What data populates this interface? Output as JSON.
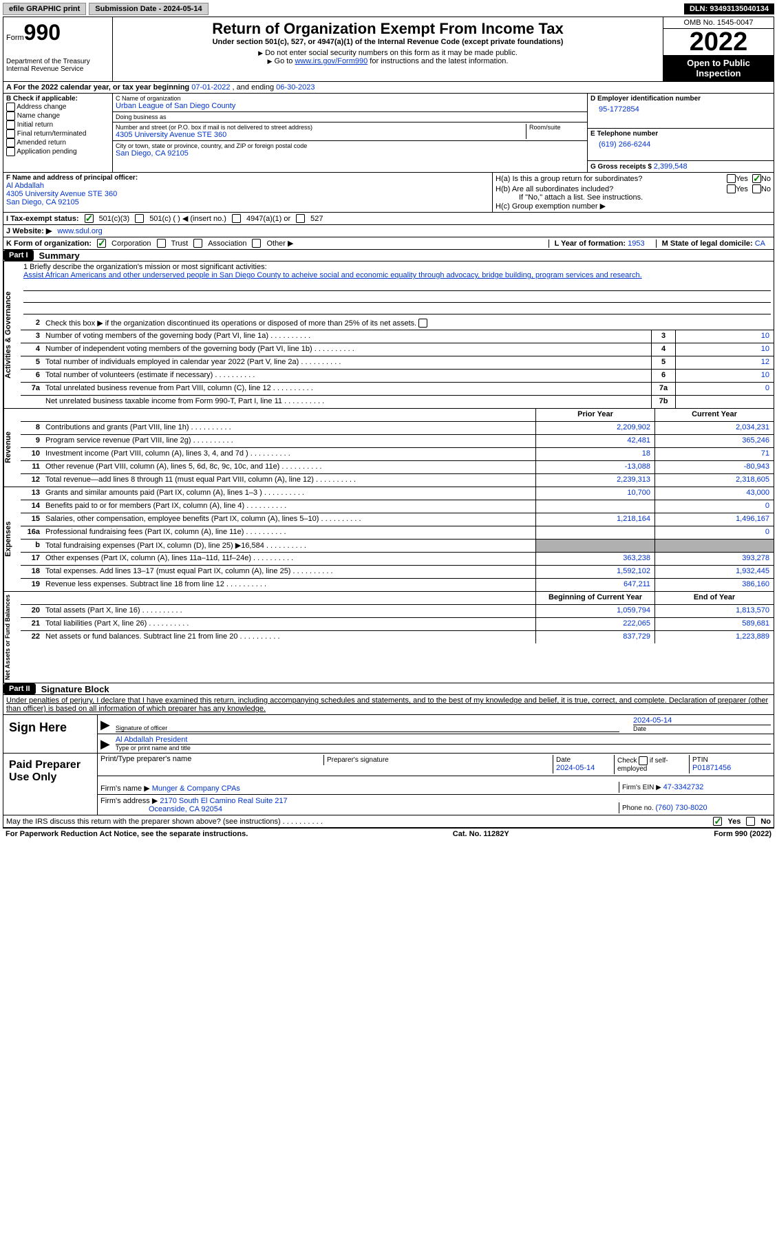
{
  "topbar": {
    "efile": "efile GRAPHIC print",
    "submission_label": "Submission Date - 2024-05-14",
    "dln": "DLN: 93493135040134"
  },
  "header": {
    "form_word": "Form",
    "form_num": "990",
    "dept": "Department of the Treasury\nInternal Revenue Service",
    "title": "Return of Organization Exempt From Income Tax",
    "subtitle": "Under section 501(c), 527, or 4947(a)(1) of the Internal Revenue Code (except private foundations)",
    "note1": "Do not enter social security numbers on this form as it may be made public.",
    "note2_a": "Go to ",
    "note2_link": "www.irs.gov/Form990",
    "note2_b": " for instructions and the latest information.",
    "omb": "OMB No. 1545-0047",
    "year": "2022",
    "inspection": "Open to Public Inspection"
  },
  "rowA": {
    "text_a": "A For the 2022 calendar year, or tax year beginning ",
    "begin": "07-01-2022",
    "mid": " , and ending ",
    "end": "06-30-2023"
  },
  "colB": {
    "hdr": "B Check if applicable:",
    "items": [
      "Address change",
      "Name change",
      "Initial return",
      "Final return/terminated",
      "Amended return",
      "Application pending"
    ]
  },
  "colC": {
    "name_lbl": "C Name of organization",
    "name": "Urban League of San Diego County",
    "dba_lbl": "Doing business as",
    "dba": "",
    "street_lbl": "Number and street (or P.O. box if mail is not delivered to street address)",
    "room_lbl": "Room/suite",
    "street": "4305 University Avenue STE 360",
    "city_lbl": "City or town, state or province, country, and ZIP or foreign postal code",
    "city": "San Diego, CA  92105"
  },
  "colD": {
    "ein_lbl": "D Employer identification number",
    "ein": "95-1772854",
    "phone_lbl": "E Telephone number",
    "phone": "(619) 266-6244",
    "gross_lbl": "G Gross receipts $ ",
    "gross": "2,399,548"
  },
  "colF": {
    "lbl": "F Name and address of principal officer:",
    "name": "Al Abdallah",
    "addr1": "4305 University Avenue STE 360",
    "addr2": "San Diego, CA  92105"
  },
  "colH": {
    "a": "H(a)  Is this a group return for subordinates?",
    "b": "H(b)  Are all subordinates included?",
    "b_note": "If \"No,\" attach a list. See instructions.",
    "c": "H(c)  Group exemption number ▶",
    "yes": "Yes",
    "no": "No"
  },
  "rowI": {
    "lbl": "I   Tax-exempt status:",
    "o1": "501(c)(3)",
    "o2": "501(c) (  ) ◀ (insert no.)",
    "o3": "4947(a)(1) or",
    "o4": "527"
  },
  "rowJ": {
    "lbl": "J   Website: ▶ ",
    "val": "www.sdul.org"
  },
  "rowK": {
    "lbl": "K Form of organization:",
    "o1": "Corporation",
    "o2": "Trust",
    "o3": "Association",
    "o4": "Other ▶",
    "l_lbl": "L Year of formation: ",
    "l_val": "1953",
    "m_lbl": "M State of legal domicile: ",
    "m_val": "CA"
  },
  "part1": {
    "hdr": "Part I",
    "title": "Summary"
  },
  "mission": {
    "q": "1   Briefly describe the organization's mission or most significant activities:",
    "text": "Assist African Americans and other underserved people in San Diego County to acheive social and economic equality through advocacy, bridge building, program services and research."
  },
  "gov": {
    "side": "Activities & Governance",
    "r2": "Check this box ▶        if the organization discontinued its operations or disposed of more than 25% of its net assets.",
    "rows": [
      {
        "n": "3",
        "desc": "Number of voting members of the governing body (Part VI, line 1a)",
        "box": "3",
        "val": "10"
      },
      {
        "n": "4",
        "desc": "Number of independent voting members of the governing body (Part VI, line 1b)",
        "box": "4",
        "val": "10"
      },
      {
        "n": "5",
        "desc": "Total number of individuals employed in calendar year 2022 (Part V, line 2a)",
        "box": "5",
        "val": "12"
      },
      {
        "n": "6",
        "desc": "Total number of volunteers (estimate if necessary)",
        "box": "6",
        "val": "10"
      },
      {
        "n": "7a",
        "desc": "Total unrelated business revenue from Part VIII, column (C), line 12",
        "box": "7a",
        "val": "0"
      },
      {
        "n": "",
        "desc": "Net unrelated business taxable income from Form 990-T, Part I, line 11",
        "box": "7b",
        "val": ""
      }
    ]
  },
  "rev": {
    "side": "Revenue",
    "hdr_prior": "Prior Year",
    "hdr_curr": "Current Year",
    "rows": [
      {
        "n": "8",
        "desc": "Contributions and grants (Part VIII, line 1h)",
        "p": "2,209,902",
        "c": "2,034,231"
      },
      {
        "n": "9",
        "desc": "Program service revenue (Part VIII, line 2g)",
        "p": "42,481",
        "c": "365,246"
      },
      {
        "n": "10",
        "desc": "Investment income (Part VIII, column (A), lines 3, 4, and 7d )",
        "p": "18",
        "c": "71"
      },
      {
        "n": "11",
        "desc": "Other revenue (Part VIII, column (A), lines 5, 6d, 8c, 9c, 10c, and 11e)",
        "p": "-13,088",
        "c": "-80,943"
      },
      {
        "n": "12",
        "desc": "Total revenue—add lines 8 through 11 (must equal Part VIII, column (A), line 12)",
        "p": "2,239,313",
        "c": "2,318,605"
      }
    ]
  },
  "exp": {
    "side": "Expenses",
    "rows": [
      {
        "n": "13",
        "desc": "Grants and similar amounts paid (Part IX, column (A), lines 1–3 )",
        "p": "10,700",
        "c": "43,000"
      },
      {
        "n": "14",
        "desc": "Benefits paid to or for members (Part IX, column (A), line 4)",
        "p": "",
        "c": "0"
      },
      {
        "n": "15",
        "desc": "Salaries, other compensation, employee benefits (Part IX, column (A), lines 5–10)",
        "p": "1,218,164",
        "c": "1,496,167"
      },
      {
        "n": "16a",
        "desc": "Professional fundraising fees (Part IX, column (A), line 11e)",
        "p": "",
        "c": "0"
      },
      {
        "n": "b",
        "desc": "Total fundraising expenses (Part IX, column (D), line 25) ▶16,584",
        "p": "__SHADE__",
        "c": "__SHADE__"
      },
      {
        "n": "17",
        "desc": "Other expenses (Part IX, column (A), lines 11a–11d, 11f–24e)",
        "p": "363,238",
        "c": "393,278"
      },
      {
        "n": "18",
        "desc": "Total expenses. Add lines 13–17 (must equal Part IX, column (A), line 25)",
        "p": "1,592,102",
        "c": "1,932,445"
      },
      {
        "n": "19",
        "desc": "Revenue less expenses. Subtract line 18 from line 12",
        "p": "647,211",
        "c": "386,160"
      }
    ]
  },
  "net": {
    "side": "Net Assets or Fund Balances",
    "hdr_prior": "Beginning of Current Year",
    "hdr_curr": "End of Year",
    "rows": [
      {
        "n": "20",
        "desc": "Total assets (Part X, line 16)",
        "p": "1,059,794",
        "c": "1,813,570"
      },
      {
        "n": "21",
        "desc": "Total liabilities (Part X, line 26)",
        "p": "222,065",
        "c": "589,681"
      },
      {
        "n": "22",
        "desc": "Net assets or fund balances. Subtract line 21 from line 20",
        "p": "837,729",
        "c": "1,223,889"
      }
    ]
  },
  "part2": {
    "hdr": "Part II",
    "title": "Signature Block",
    "decl": "Under penalties of perjury, I declare that I have examined this return, including accompanying schedules and statements, and to the best of my knowledge and belief, it is true, correct, and complete. Declaration of preparer (other than officer) is based on all information of which preparer has any knowledge."
  },
  "sign": {
    "here": "Sign Here",
    "sig_lbl": "Signature of officer",
    "date_lbl": "Date",
    "date": "2024-05-14",
    "name": "Al Abdallah  President",
    "name_lbl": "Type or print name and title"
  },
  "prep": {
    "here": "Paid Preparer Use Only",
    "r1": {
      "a": "Print/Type preparer's name",
      "b": "Preparer's signature",
      "c_lbl": "Date",
      "c": "2024-05-14",
      "d": "Check        if self-employed",
      "e_lbl": "PTIN",
      "e": "P01871456"
    },
    "r2": {
      "a": "Firm's name      ▶ ",
      "av": "Munger & Company CPAs",
      "b": "Firm's EIN ▶ ",
      "bv": "47-3342732"
    },
    "r3": {
      "a": "Firm's address ▶ ",
      "av": "2170 South El Camino Real Suite 217",
      "av2": "Oceanside, CA  92054",
      "b": "Phone no. ",
      "bv": "(760) 730-8020"
    }
  },
  "discuss": {
    "q": "May the IRS discuss this return with the preparer shown above? (see instructions)",
    "yes": "Yes",
    "no": "No"
  },
  "footer": {
    "left": "For Paperwork Reduction Act Notice, see the separate instructions.",
    "mid": "Cat. No. 11282Y",
    "right": "Form 990 (2022)"
  }
}
